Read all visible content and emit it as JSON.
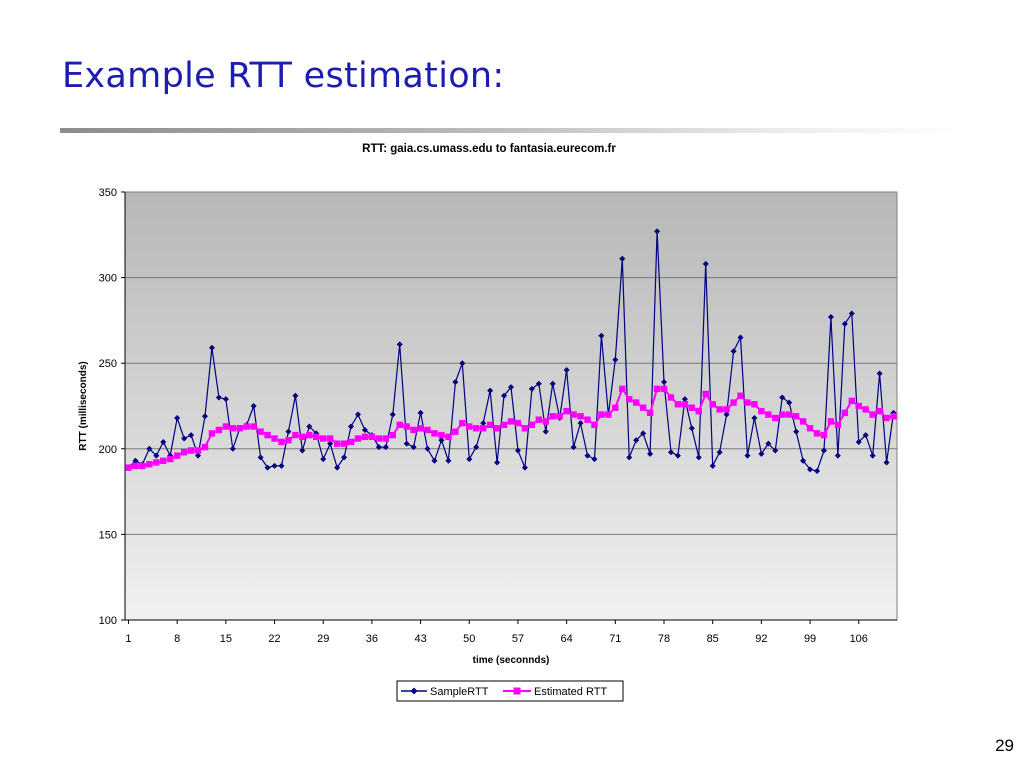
{
  "slide": {
    "title": "Example RTT estimation:",
    "page_number": "29"
  },
  "colors": {
    "title": "#1c1cb0",
    "sample_series": "#000080",
    "estimated_series": "#ff00ff",
    "plot_background_top": "#b7b7b7",
    "plot_background_bottom": "#f1f1f1"
  },
  "chart_data": {
    "type": "line",
    "title": "RTT: gaia.cs.umass.edu to fantasia.eurecom.fr",
    "xlabel": "time (seconnds)",
    "ylabel": "RTT (milliseconds)",
    "ylim": [
      100,
      350
    ],
    "yticks": [
      100,
      150,
      200,
      250,
      300,
      350
    ],
    "xlim": [
      1,
      111
    ],
    "xticks": [
      1,
      8,
      15,
      22,
      29,
      36,
      43,
      50,
      57,
      64,
      71,
      78,
      85,
      92,
      99,
      106
    ],
    "grid": true,
    "legend": "bottom-center",
    "x": [
      1,
      2,
      3,
      4,
      5,
      6,
      7,
      8,
      9,
      10,
      11,
      12,
      13,
      14,
      15,
      16,
      17,
      18,
      19,
      20,
      21,
      22,
      23,
      24,
      25,
      26,
      27,
      28,
      29,
      30,
      31,
      32,
      33,
      34,
      35,
      36,
      37,
      38,
      39,
      40,
      41,
      42,
      43,
      44,
      45,
      46,
      47,
      48,
      49,
      50,
      51,
      52,
      53,
      54,
      55,
      56,
      57,
      58,
      59,
      60,
      61,
      62,
      63,
      64,
      65,
      66,
      67,
      68,
      69,
      70,
      71,
      72,
      73,
      74,
      75,
      76,
      77,
      78,
      79,
      80,
      81,
      82,
      83,
      84,
      85,
      86,
      87,
      88,
      89,
      90,
      91,
      92,
      93,
      94,
      95,
      96,
      97,
      98,
      99,
      100,
      101,
      102,
      103,
      104,
      105,
      106,
      107,
      108,
      109,
      110,
      111
    ],
    "series": [
      {
        "name": "SampleRTT",
        "marker": "diamond",
        "values": [
          189,
          193,
          191,
          200,
          196,
          204,
          196,
          218,
          206,
          208,
          196,
          219,
          259,
          230,
          229,
          200,
          212,
          214,
          225,
          195,
          189,
          190,
          190,
          210,
          231,
          199,
          213,
          209,
          194,
          203,
          189,
          195,
          213,
          220,
          211,
          208,
          201,
          201,
          220,
          261,
          203,
          201,
          221,
          200,
          193,
          205,
          193,
          239,
          250,
          194,
          201,
          215,
          234,
          192,
          231,
          236,
          199,
          189,
          235,
          238,
          210,
          238,
          218,
          246,
          201,
          215,
          196,
          194,
          266,
          220,
          252,
          311,
          195,
          205,
          209,
          197,
          327,
          239,
          198,
          196,
          229,
          212,
          195,
          308,
          190,
          198,
          220,
          257,
          265,
          196,
          218,
          197,
          203,
          199,
          230,
          227,
          210,
          193,
          188,
          187,
          199,
          277,
          196,
          273,
          279,
          204,
          208,
          196,
          244,
          192,
          221
        ]
      },
      {
        "name": "Estimated RTT",
        "marker": "square",
        "values": [
          189,
          190,
          190,
          191,
          192,
          193,
          194,
          196,
          198,
          199,
          199,
          201,
          209,
          211,
          213,
          212,
          212,
          213,
          213,
          210,
          208,
          206,
          204,
          205,
          208,
          207,
          208,
          207,
          206,
          206,
          203,
          203,
          204,
          206,
          207,
          207,
          206,
          206,
          208,
          214,
          213,
          211,
          212,
          211,
          209,
          208,
          207,
          210,
          215,
          213,
          212,
          212,
          214,
          212,
          214,
          216,
          215,
          212,
          214,
          217,
          216,
          219,
          219,
          222,
          220,
          219,
          217,
          214,
          220,
          220,
          224,
          235,
          229,
          227,
          224,
          221,
          235,
          235,
          230,
          226,
          226,
          224,
          222,
          232,
          226,
          223,
          223,
          227,
          231,
          227,
          226,
          222,
          220,
          218,
          220,
          220,
          219,
          216,
          212,
          209,
          208,
          216,
          214,
          221,
          228,
          225,
          223,
          220,
          222,
          218,
          219
        ]
      }
    ]
  }
}
